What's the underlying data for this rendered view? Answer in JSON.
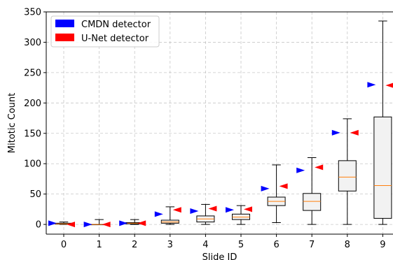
{
  "chart_data": {
    "type": "box",
    "xlabel": "Slide ID",
    "ylabel": "Mitotic Count",
    "x_ticks": [
      "0",
      "1",
      "2",
      "3",
      "4",
      "5",
      "6",
      "7",
      "8",
      "9"
    ],
    "y_ticks": [
      "0",
      "50",
      "100",
      "150",
      "200",
      "250",
      "300",
      "350"
    ],
    "ylim": [
      -16,
      350
    ],
    "grid": true,
    "legend_position": "top-left",
    "legend": [
      {
        "label": "CMDN detector",
        "color": "#0000ff"
      },
      {
        "label": "U-Net detector",
        "color": "#ff0000"
      }
    ],
    "box_color": "#f2f2f2",
    "median_color": "#ff7f0e",
    "boxes": [
      {
        "slide": 0,
        "min": 0,
        "q1": 0.5,
        "median": 1,
        "q3": 2,
        "max": 4
      },
      {
        "slide": 1,
        "min": 0,
        "q1": 0,
        "median": 0,
        "q3": 0,
        "max": 8
      },
      {
        "slide": 2,
        "min": 0,
        "q1": 1,
        "median": 2,
        "q3": 3,
        "max": 8
      },
      {
        "slide": 3,
        "min": 0,
        "q1": 2,
        "median": 4,
        "q3": 7,
        "max": 29
      },
      {
        "slide": 4,
        "min": 0,
        "q1": 4,
        "median": 9,
        "q3": 14,
        "max": 33
      },
      {
        "slide": 5,
        "min": 0,
        "q1": 8,
        "median": 12,
        "q3": 17,
        "max": 31
      },
      {
        "slide": 6,
        "min": 3,
        "q1": 31,
        "median": 38,
        "q3": 45,
        "max": 98
      },
      {
        "slide": 7,
        "min": 0,
        "q1": 23,
        "median": 38,
        "q3": 51,
        "max": 110
      },
      {
        "slide": 8,
        "min": 0,
        "q1": 55,
        "median": 78,
        "q3": 105,
        "max": 174
      },
      {
        "slide": 9,
        "min": 0,
        "q1": 10,
        "median": 64,
        "q3": 177,
        "max": 335
      }
    ],
    "series": [
      {
        "name": "CMDN detector",
        "values": [
          2,
          0,
          2,
          17,
          22,
          24,
          59,
          89,
          151,
          230
        ]
      },
      {
        "name": "U-Net detector",
        "values": [
          0,
          0,
          2,
          24,
          26,
          25,
          63,
          94,
          151,
          229
        ]
      }
    ]
  }
}
